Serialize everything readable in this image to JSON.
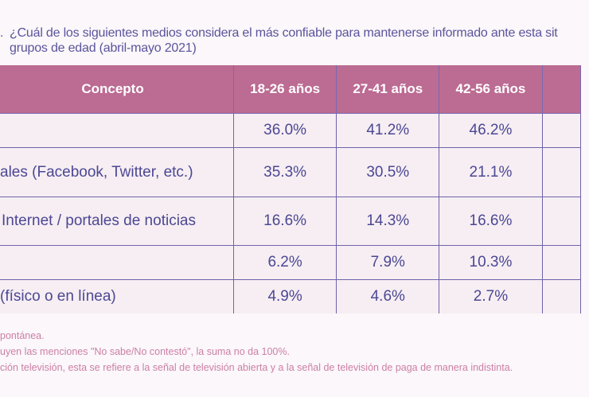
{
  "title": {
    "number_fragment": ".",
    "line1": "¿Cuál de los siguientes medios considera el más confiable para mantenerse informado ante esta sit",
    "line2": "grupos de edad (abril-mayo 2021)"
  },
  "table": {
    "headers": [
      "Concepto",
      "18-26 años",
      "27-41 años",
      "42-56 años",
      ""
    ],
    "rows": [
      {
        "label": "",
        "values": [
          "36.0%",
          "41.2%",
          "46.2%"
        ]
      },
      {
        "label": "ales (Facebook, Twitter, etc.)",
        "values": [
          "35.3%",
          "30.5%",
          "21.1%"
        ]
      },
      {
        "label": "Internet / portales de noticias",
        "values": [
          "16.6%",
          "14.3%",
          "16.6%"
        ]
      },
      {
        "label": "",
        "values": [
          "6.2%",
          "7.9%",
          "10.3%"
        ]
      },
      {
        "label": "(físico o en línea)",
        "values": [
          "4.9%",
          "4.6%",
          "2.7%"
        ]
      }
    ]
  },
  "footnotes": [
    "pontánea.",
    "uyen las menciones \"No sabe/No contestó\", la suma no da 100%.",
    "ción televisión, esta se refiere a la señal de televisión abierta y a la señal de televisión de paga de manera indistinta."
  ],
  "colors": {
    "header_bg": "#bc6b93",
    "row_bg": "#f6eef2",
    "text": "#4c4794",
    "footnote": "#cc7fa6",
    "grid": "#6f63ab"
  }
}
